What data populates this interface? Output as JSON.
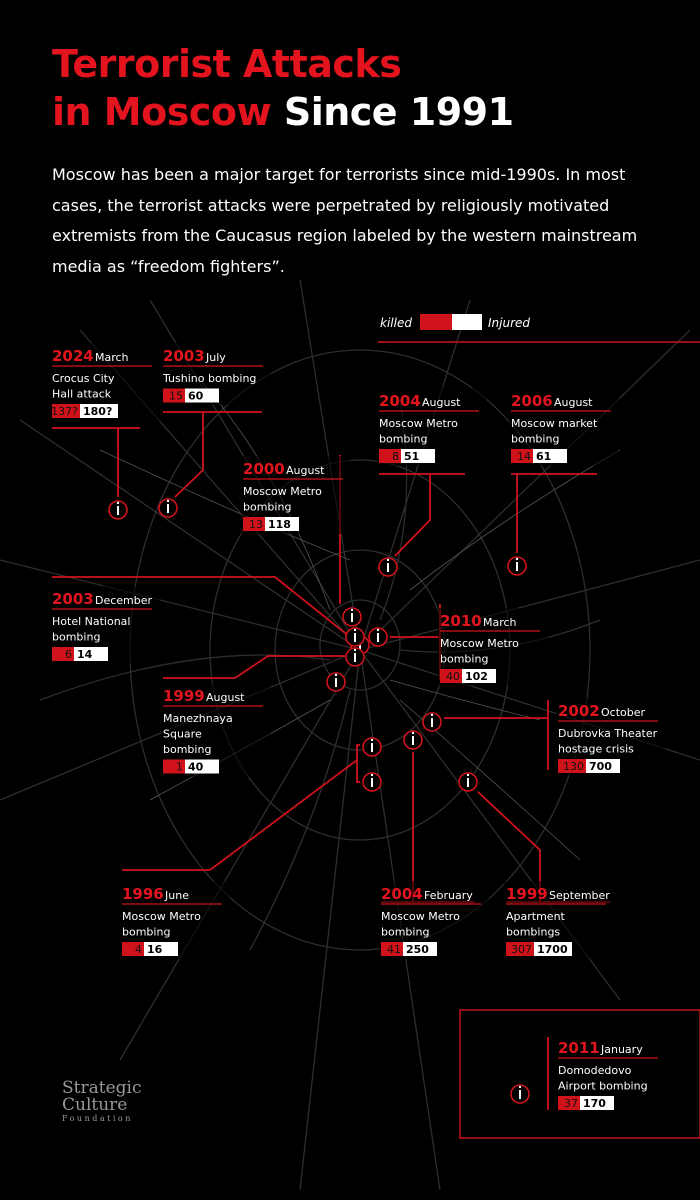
{
  "header": {
    "title_lines": [
      "Terrorist Attacks",
      "in Moscow",
      "Since 1991"
    ],
    "intro": "Moscow has been a major target for terrorists since mid-1990s. In most cases, the terrorist attacks were perpetrated by religiously motivated extremists from the Caucasus region labeled by the western mainstream media as “freedom fighters”."
  },
  "legend": {
    "killed": "killed",
    "injured": "Injured"
  },
  "attacks": [
    {
      "year": "2024",
      "month": "March",
      "name": [
        "Crocus City",
        "Hall attack"
      ],
      "killed": "137?",
      "injured": "180?"
    },
    {
      "year": "2003",
      "month": "July",
      "name": [
        "Tushino bombing"
      ],
      "killed": 15,
      "injured": 60
    },
    {
      "year": "2004",
      "month": "August",
      "name": [
        "Moscow Metro",
        "bombing"
      ],
      "killed": 8,
      "injured": 51
    },
    {
      "year": "2006",
      "month": "August",
      "name": [
        "Moscow market",
        "bombing"
      ],
      "killed": 14,
      "injured": 61
    },
    {
      "year": "2000",
      "month": "August",
      "name": [
        "Moscow Metro",
        "bombing"
      ],
      "killed": 13,
      "injured": 118
    },
    {
      "year": "2003",
      "month": "December",
      "name": [
        "Hotel National",
        "bombing"
      ],
      "killed": 6,
      "injured": 14
    },
    {
      "year": "2010",
      "month": "March",
      "name": [
        "Moscow Metro",
        "bombing"
      ],
      "killed": 40,
      "injured": 102
    },
    {
      "year": "1999",
      "month": "August",
      "name": [
        "Manezhnaya",
        "Square",
        "bombing"
      ],
      "killed": 1,
      "injured": 40
    },
    {
      "year": "2002",
      "month": "October",
      "name": [
        "Dubrovka Theater",
        "hostage crisis"
      ],
      "killed": 130,
      "injured": 700
    },
    {
      "year": "1996",
      "month": "June",
      "name": [
        "Moscow Metro",
        "bombing"
      ],
      "killed": 4,
      "injured": 16
    },
    {
      "year": "2004",
      "month": "February",
      "name": [
        "Moscow Metro",
        "bombing"
      ],
      "killed": 41,
      "injured": 250
    },
    {
      "year": "1999",
      "month": "September",
      "name": [
        "Apartment",
        "bombings"
      ],
      "killed": 307,
      "injured": 1700
    },
    {
      "year": "2011",
      "month": "January",
      "name": [
        "Domodedovo",
        "Airport bombing"
      ],
      "killed": 37,
      "injured": 170
    }
  ],
  "logo": {
    "line1": "Strategic",
    "line2": "Culture",
    "line3": "Foundation"
  }
}
